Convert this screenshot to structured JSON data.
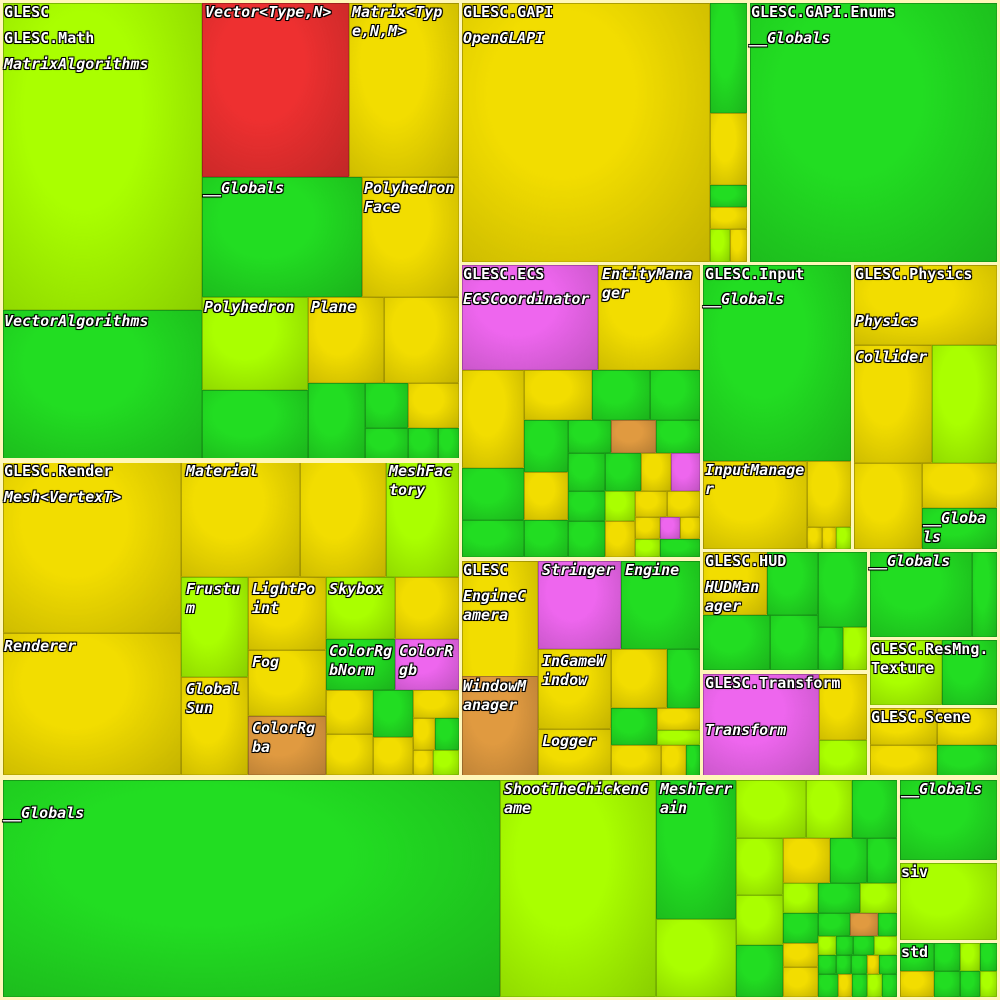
{
  "colors": {
    "border": "#fff7b8",
    "green": "#22dd22",
    "lime": "#aaff00",
    "yellow": "#f2dd00",
    "red": "#ee3030",
    "pink": "#ee66ee",
    "orange": "#e09a40"
  },
  "labels": {
    "glesc": "GLESC",
    "glesc_math": "GLESC.Math",
    "matrix_algorithms": "MatrixAlgorithms",
    "vector_type": "Vector<Type,N>",
    "matrix_type": "Matrix<Type,N,M>",
    "math_globals": "__Globals",
    "polyhedron_face": "PolyhedronFace",
    "vector_algorithms": "VectorAlgorithms",
    "polyhedron": "Polyhedron",
    "plane": "Plane",
    "glesc_gapi": "GLESC.GAPI",
    "opengl_api": "OpenGLAPI",
    "glesc_gapi_enums": "GLESC.GAPI.Enums",
    "enums_globals": "__Globals",
    "glesc_ecs": "GLESC.ECS",
    "ecs_coordinator": "ECSCoordinator",
    "entity_manager": "EntityManager",
    "glesc_input": "GLESC.Input",
    "input_globals": "__Globals",
    "input_manager": "InputManager",
    "glesc_physics": "GLESC.Physics",
    "physics": "Physics",
    "collider": "Collider",
    "physics_globals": "__Globals",
    "glesc_render": "GLESC.Render",
    "mesh_vertex": "Mesh<VertexT>",
    "material": "Material",
    "mesh_factory": "MeshFactory",
    "renderer": "Renderer",
    "frustum": "Frustum",
    "light_point": "LightPoint",
    "skybox": "Skybox",
    "fog": "Fog",
    "color_rgb_norm": "ColorRgbNorm",
    "color_rgb": "ColorRgb",
    "global_sun": "GlobalSun",
    "color_rgba": "ColorRgba",
    "glesc_engine_ns": "GLESC",
    "engine_camera": "EngineCamera",
    "window_manager": "WindowManager",
    "stringer": "Stringer",
    "engine": "Engine",
    "ingame_window": "InGameWindow",
    "logger": "Logger",
    "glesc_hud": "GLESC.HUD",
    "hud_manager": "HUDManager",
    "glesc_transform": "GLESC.Transform",
    "transform": "Transform",
    "mid_globals": "__Globals",
    "glesc_resmng": "GLESC.ResMng.Texture",
    "glesc_scene": "GLESC.Scene",
    "root_globals": "__Globals",
    "shoot_the_chicken": "ShootTheChickenGame",
    "mesh_terrain": "MeshTerrain",
    "right_globals": "__Globals",
    "siv": "siv",
    "std": "std"
  }
}
